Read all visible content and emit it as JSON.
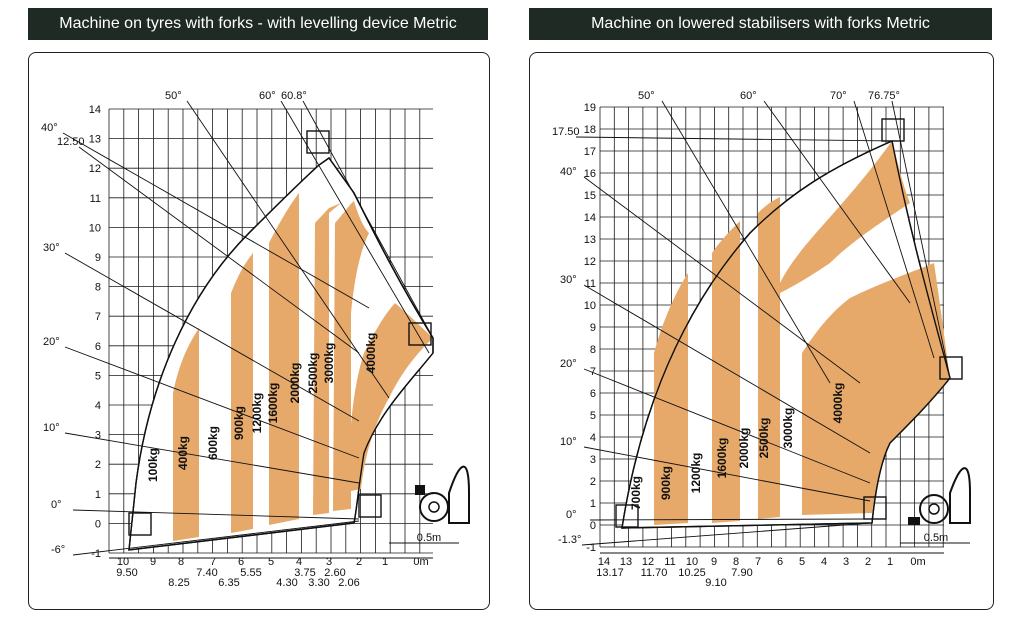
{
  "colors": {
    "band": "#e7a96a",
    "grid": "#1a1a1a",
    "title_bg": "#1f2a24",
    "title_fg": "#ffffff"
  },
  "charts": [
    {
      "title": "Machine on tyres with forks - with levelling device Metric",
      "height_ticks": [
        "14",
        "13",
        "12",
        "11",
        "10",
        "9",
        "8",
        "7",
        "6",
        "5",
        "4",
        "3",
        "2",
        "1",
        "0",
        "-1"
      ],
      "reach_ticks": [
        "10",
        "9",
        "8",
        "7",
        "6",
        "5",
        "4",
        "3",
        "2",
        "1",
        "0m"
      ],
      "reach_sub_labels": [
        "9.50",
        "8.25",
        "7.40",
        "6.35",
        "5.55",
        "4.30",
        "3.75",
        "3.30",
        "2.60",
        "2.06"
      ],
      "angle_labels": [
        "50°",
        "60°",
        "60.8°",
        "40°",
        "12.50",
        "30°",
        "20°",
        "10°",
        "0°",
        "-6°"
      ],
      "load_labels": [
        "100kg",
        "400kg",
        "600kg",
        "900kg",
        "1200kg",
        "1600kg",
        "2000kg",
        "2500kg",
        "3000kg",
        "4000kg"
      ],
      "scale_label": "0.5m"
    },
    {
      "title": "Machine on lowered stabilisers with forks Metric",
      "height_ticks": [
        "19",
        "18",
        "17",
        "16",
        "15",
        "14",
        "13",
        "12",
        "11",
        "10",
        "9",
        "8",
        "7",
        "6",
        "5",
        "4",
        "3",
        "2",
        "1",
        "0",
        "-1"
      ],
      "reach_ticks": [
        "14",
        "13",
        "12",
        "11",
        "10",
        "9",
        "8",
        "7",
        "6",
        "5",
        "4",
        "3",
        "2",
        "1",
        "0m"
      ],
      "reach_sub_labels": [
        "13.17",
        "11.70",
        "10.25",
        "9.10",
        "7.90"
      ],
      "angle_labels": [
        "50°",
        "60°",
        "70°",
        "76.75°",
        "17.50",
        "40°",
        "30°",
        "20°",
        "10°",
        "0°",
        "-1.3°"
      ],
      "load_labels": [
        "700kg",
        "900kg",
        "1200kg",
        "1600kg",
        "2000kg",
        "2500kg",
        "3000kg",
        "4000kg"
      ],
      "scale_label": "0.5m"
    }
  ]
}
